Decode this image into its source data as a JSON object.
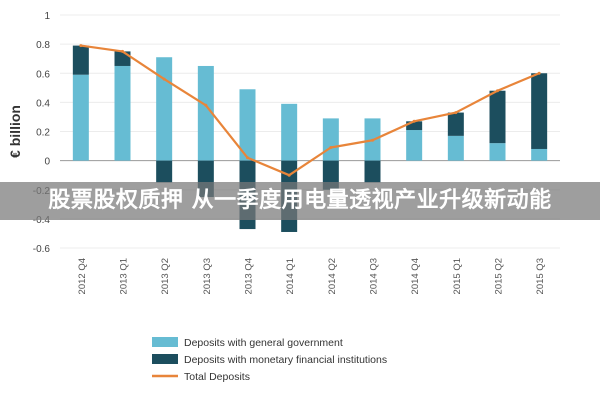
{
  "overlay_text": "股票股权质押 从一季度用电量透视产业升级新动能",
  "chart_data": {
    "type": "bar",
    "stacked": true,
    "ylabel": "€ billion",
    "ylim": [
      -0.6,
      1
    ],
    "yticks": [
      "1",
      "0.8",
      "0.6",
      "0.4",
      "0.2",
      "0",
      "-0.2",
      "-0.4",
      "-0.6"
    ],
    "categories": [
      "2012 Q4",
      "2013 Q1",
      "2013 Q2",
      "2013 Q3",
      "2013 Q4",
      "2014 Q1",
      "2014 Q2",
      "2014 Q3",
      "2014 Q4",
      "2015 Q1",
      "2015 Q2",
      "2015 Q3"
    ],
    "series": [
      {
        "name": "Deposits with general government",
        "type": "bar",
        "color": "#66bcd3",
        "values": [
          0.59,
          0.65,
          0.71,
          0.65,
          0.49,
          0.39,
          0.29,
          0.29,
          0.21,
          0.17,
          0.12,
          0.08
        ]
      },
      {
        "name": "Deposits with monetary financial institutions",
        "type": "bar",
        "color": "#1c4e5e",
        "values": [
          0.2,
          0.1,
          -0.15,
          -0.25,
          -0.47,
          -0.49,
          -0.2,
          -0.15,
          0.06,
          0.16,
          0.36,
          0.52
        ]
      },
      {
        "name": "Total Deposits",
        "type": "line",
        "color": "#e8853a",
        "values": [
          0.79,
          0.75,
          0.56,
          0.38,
          0.02,
          -0.1,
          0.09,
          0.14,
          0.27,
          0.33,
          0.48,
          0.6
        ]
      }
    ],
    "legend": "bottom"
  }
}
